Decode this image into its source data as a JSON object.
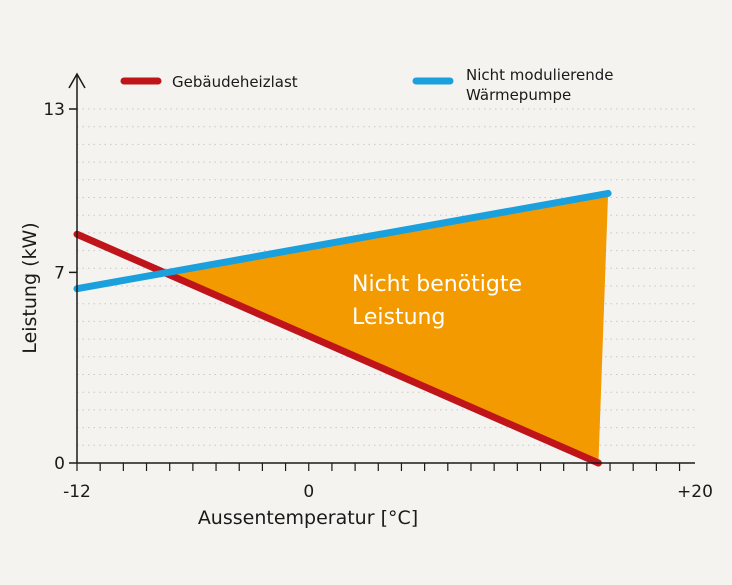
{
  "colors": {
    "background": "#f5f3f0",
    "heat_load": "#c0141b",
    "heat_pump": "#1aa0dc",
    "unneeded_area": "#f29a00",
    "grid": "#c8c8c8",
    "axis": "#1a1a1a"
  },
  "chart_data": {
    "type": "line",
    "xlabel": "Aussentemperatur [°C]",
    "ylabel": "Leistung (kW)",
    "xlim": [
      -12,
      20
    ],
    "ylim": [
      0,
      13
    ],
    "x_tick_labels": [
      {
        "value": -12,
        "label": "-12"
      },
      {
        "value": 0,
        "label": "0"
      },
      {
        "value": 20,
        "label": "+20"
      }
    ],
    "y_tick_labels": [
      {
        "value": 0,
        "label": "0"
      },
      {
        "value": 7,
        "label": "7"
      },
      {
        "value": 13,
        "label": "13"
      }
    ],
    "minor_x_step": 1.2,
    "grid_y_step": 0.65,
    "grid": true,
    "legend_position": "top",
    "series": [
      {
        "name": "Gebäudeheizlast",
        "color": "#c0141b",
        "x": [
          -12,
          15
        ],
        "y": [
          8.4,
          0
        ]
      },
      {
        "name": "Nicht modulierende Wärmepumpe",
        "name_lines": [
          "Nicht modulierende",
          "Wärmepumpe"
        ],
        "color": "#1aa0dc",
        "x": [
          -12,
          15.5
        ],
        "y": [
          6.4,
          9.9
        ]
      }
    ],
    "area_annotation": {
      "lines": [
        "Nicht benötigte",
        "Leistung"
      ]
    }
  }
}
